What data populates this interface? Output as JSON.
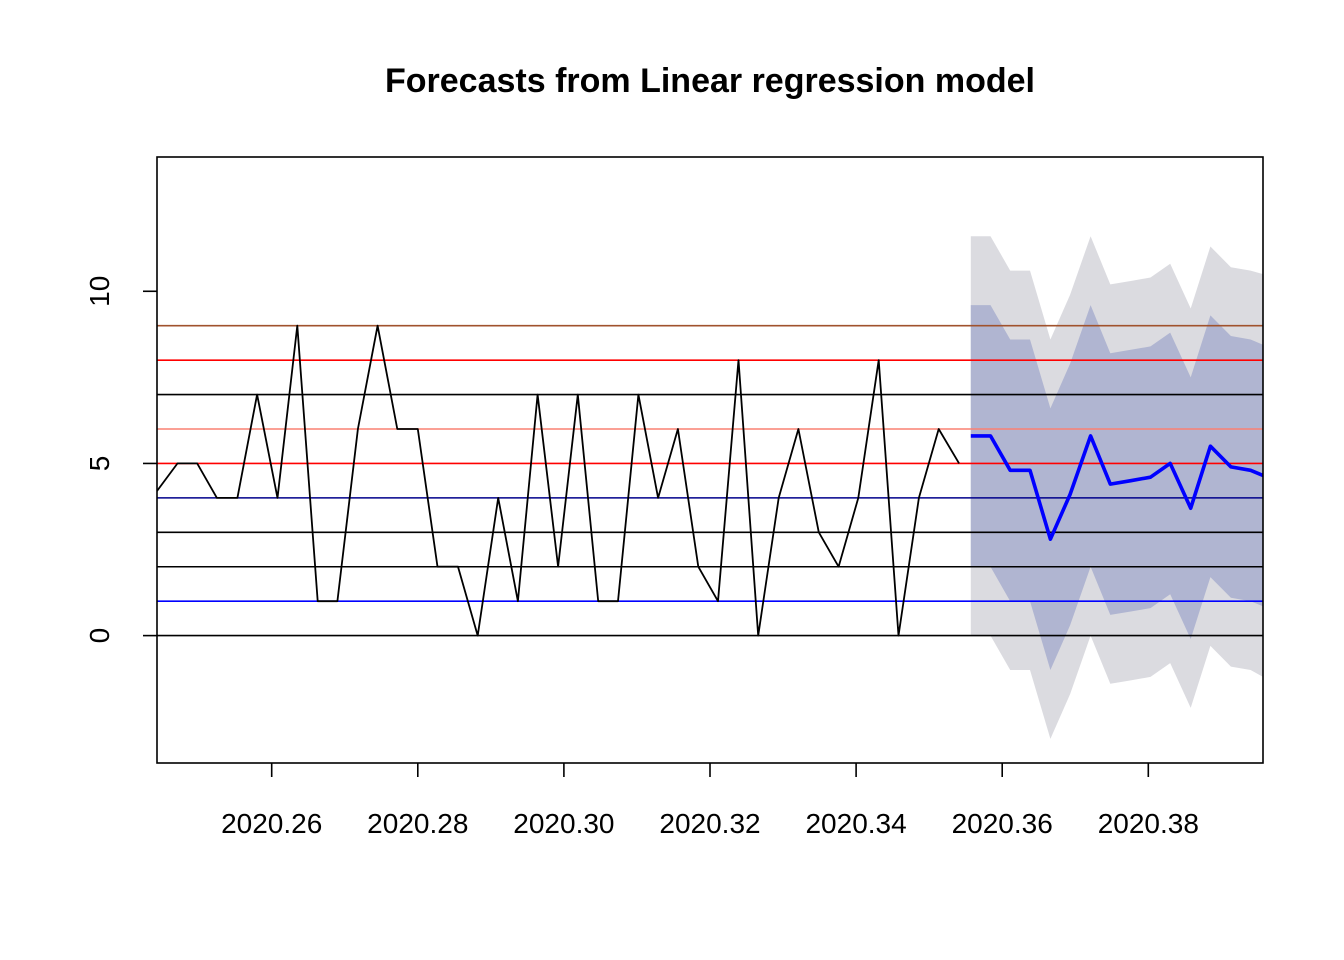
{
  "chart_data": {
    "type": "line",
    "title": "Forecasts from Linear regression model",
    "xlabel": "",
    "ylabel": "",
    "xlim": [
      2020.2443,
      2020.3957
    ],
    "ylim": [
      -3.7,
      13.9
    ],
    "x_ticks": [
      2020.26,
      2020.28,
      2020.3,
      2020.32,
      2020.34,
      2020.36,
      2020.38
    ],
    "x_tick_labels": [
      "2020.26",
      "2020.28",
      "2020.30",
      "2020.32",
      "2020.34",
      "2020.36",
      "2020.38"
    ],
    "y_ticks": [
      0,
      5,
      10
    ],
    "y_tick_labels": [
      "0",
      "5",
      "10"
    ],
    "grid": false,
    "legend": "none",
    "reference_lines": [
      {
        "y": 9,
        "color": "#a0522d"
      },
      {
        "y": 8,
        "color": "#ff0000"
      },
      {
        "y": 7,
        "color": "#000000"
      },
      {
        "y": 6,
        "color": "#fa8072"
      },
      {
        "y": 5,
        "color": "#ff0000"
      },
      {
        "y": 4,
        "color": "#00008b"
      },
      {
        "y": 3,
        "color": "#000000"
      },
      {
        "y": 2,
        "color": "#000000"
      },
      {
        "y": 1,
        "color": "#0000ff"
      },
      {
        "y": 0,
        "color": "#000000"
      }
    ],
    "series": [
      {
        "role": "observed",
        "color": "#000000",
        "x": [
          2020.2443,
          2020.2471,
          2020.2498,
          2020.2525,
          2020.2553,
          2020.258,
          2020.2608,
          2020.2635,
          2020.2663,
          2020.269,
          2020.2718,
          2020.2745,
          2020.2772,
          2020.28,
          2020.2827,
          2020.2855,
          2020.2882,
          2020.291,
          2020.2937,
          2020.2964,
          2020.2992,
          2020.3019,
          2020.3047,
          2020.3074,
          2020.3102,
          2020.3129,
          2020.3156,
          2020.3184,
          2020.3211,
          2020.3239,
          2020.3266,
          2020.3294,
          2020.3321,
          2020.3349,
          2020.3376,
          2020.3403,
          2020.3431,
          2020.3458,
          2020.3486,
          2020.3513,
          2020.3541
        ],
        "y": [
          4.2,
          5,
          5,
          4,
          4,
          7,
          4,
          9,
          1,
          1,
          6,
          9,
          6,
          6,
          2,
          2,
          0,
          4,
          1,
          7,
          2,
          7,
          1,
          1,
          7,
          4,
          6,
          2,
          1,
          8,
          0,
          4,
          6,
          3,
          2,
          4,
          8,
          0,
          4,
          6,
          5
        ]
      },
      {
        "role": "forecast",
        "color": "#0000ff",
        "x": [
          2020.3557,
          2020.3584,
          2020.3611,
          2020.3638,
          2020.3666,
          2020.3693,
          2020.3721,
          2020.3748,
          2020.3776,
          2020.3803,
          2020.383,
          2020.3858,
          2020.3885,
          2020.3913,
          2020.394,
          2020.3957
        ],
        "y": [
          5.8,
          5.8,
          4.8,
          4.8,
          2.8,
          4.1,
          5.8,
          4.4,
          4.5,
          4.6,
          5.0,
          3.7,
          5.5,
          4.9,
          4.8,
          4.65
        ],
        "lower80": [
          2.0,
          2.0,
          1.0,
          1.0,
          -1.0,
          0.3,
          2.0,
          0.6,
          0.7,
          0.8,
          1.2,
          -0.1,
          1.7,
          1.1,
          1.0,
          0.85
        ],
        "upper80": [
          9.6,
          9.6,
          8.6,
          8.6,
          6.6,
          7.9,
          9.6,
          8.2,
          8.3,
          8.4,
          8.8,
          7.5,
          9.3,
          8.7,
          8.6,
          8.45
        ],
        "lower95": [
          0.0,
          0.0,
          -1.0,
          -1.0,
          -3.0,
          -1.7,
          0.0,
          -1.4,
          -1.3,
          -1.2,
          -0.8,
          -2.1,
          -0.3,
          -0.9,
          -1.0,
          -1.2
        ],
        "upper95": [
          11.6,
          11.6,
          10.6,
          10.6,
          8.6,
          9.9,
          11.6,
          10.2,
          10.3,
          10.4,
          10.8,
          9.5,
          11.3,
          10.7,
          10.6,
          10.5
        ]
      }
    ],
    "colors": {
      "band95": "#dbdbe0",
      "band80": "#b0b5d1"
    }
  }
}
